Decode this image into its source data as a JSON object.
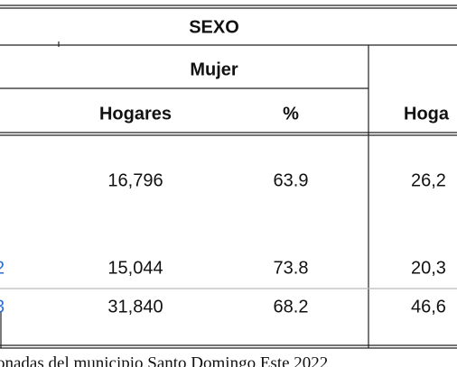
{
  "header": {
    "title": "SEXO",
    "group": "Mujer",
    "columns": [
      "Hogares",
      "%",
      "Hoga"
    ]
  },
  "rows": [
    {
      "cells": [
        "16,796",
        "63.9",
        "26,2"
      ]
    },
    {
      "label": "2",
      "cells": [
        "15,044",
        "73.8",
        "20,3"
      ]
    },
    {
      "label": "3",
      "cells": [
        "31,840",
        "68.2",
        "46,6"
      ]
    }
  ],
  "footer": "onadas del municipio Santo Domingo Este 2022"
}
